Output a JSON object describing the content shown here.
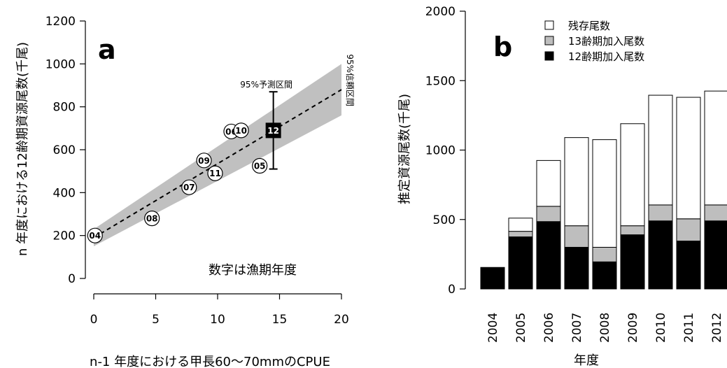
{
  "chart_data": [
    {
      "type": "scatter",
      "panel_label": "a",
      "xlabel": "n-1 年度における甲長60～70mmのCPUE",
      "ylabel": "n 年度における12齢期資源尾数(千尾)",
      "xlim": [
        0,
        20
      ],
      "ylim": [
        0,
        1200
      ],
      "xticks": [
        "0",
        "5",
        "10",
        "15",
        "20"
      ],
      "yticks": [
        "0",
        "200",
        "400",
        "600",
        "800",
        "1000",
        "1200"
      ],
      "points": [
        {
          "label": "04",
          "x": 0.1,
          "y": 200
        },
        {
          "label": "08",
          "x": 4.7,
          "y": 280
        },
        {
          "label": "07",
          "x": 7.7,
          "y": 425
        },
        {
          "label": "09",
          "x": 8.9,
          "y": 550
        },
        {
          "label": "11",
          "x": 9.8,
          "y": 490
        },
        {
          "label": "06",
          "x": 11.1,
          "y": 685
        },
        {
          "label": "10",
          "x": 11.9,
          "y": 690
        },
        {
          "label": "05",
          "x": 13.4,
          "y": 525
        }
      ],
      "predicted": {
        "label": "12",
        "x": 14.5,
        "y": 690,
        "pi_low": 510,
        "pi_high": 870
      },
      "regression": {
        "x0": 0,
        "y0": 190,
        "x1": 20,
        "y1": 880
      },
      "confidence_band": {
        "x": [
          0,
          20
        ],
        "lower": [
          150,
          760
        ],
        "upper": [
          230,
          1000
        ]
      },
      "annotations": {
        "prediction_interval": "95%予測区間",
        "confidence_interval": "95%信頼区間",
        "note": "数字は漁期年度"
      }
    },
    {
      "type": "bar",
      "stacked": true,
      "panel_label": "b",
      "xlabel": "年度",
      "ylabel": "推定資源尾数(千尾)",
      "ylim": [
        0,
        2000
      ],
      "yticks": [
        "0",
        "500",
        "1000",
        "1500",
        "2000"
      ],
      "categories": [
        "2004",
        "2005",
        "2006",
        "2007",
        "2008",
        "2009",
        "2010",
        "2011",
        "2012"
      ],
      "series": [
        {
          "name": "12齢期加入尾数",
          "color": "#000000",
          "values": [
            145,
            375,
            485,
            300,
            195,
            390,
            490,
            345,
            490
          ]
        },
        {
          "name": "13齢期加入尾数",
          "color": "#bebebe",
          "values": [
            5,
            40,
            110,
            155,
            105,
            65,
            115,
            160,
            115
          ]
        },
        {
          "name": "残存尾数",
          "color": "#ffffff",
          "values": [
            5,
            95,
            330,
            635,
            775,
            735,
            790,
            875,
            820
          ]
        }
      ],
      "legend_order": [
        "残存尾数",
        "13齢期加入尾数",
        "12齢期加入尾数"
      ],
      "legend_position": "top-left"
    }
  ]
}
